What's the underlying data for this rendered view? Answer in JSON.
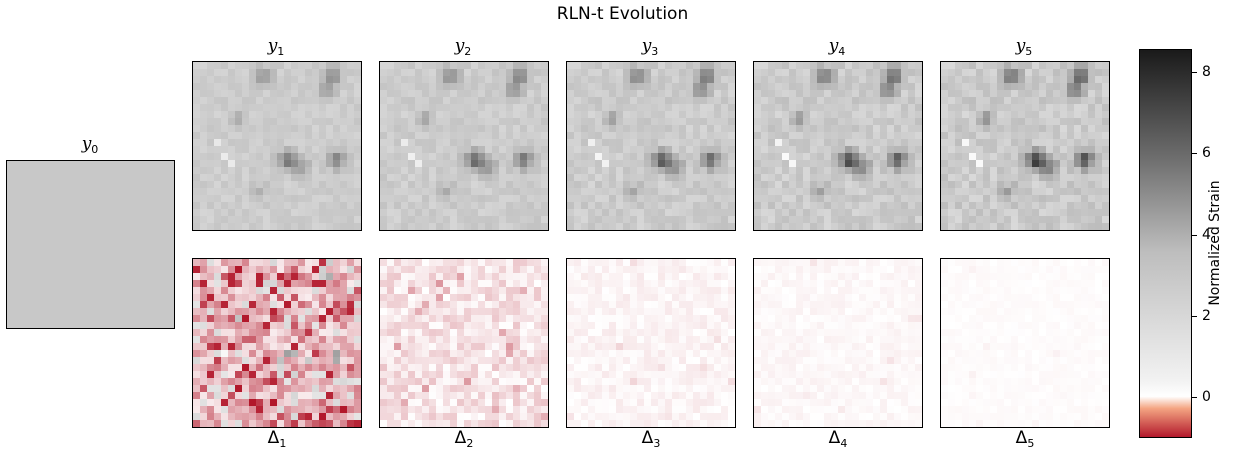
{
  "chart_data": {
    "type": "heatmap",
    "title": "RLN-t Evolution",
    "initial_panel": {
      "label": "y",
      "sub": "0"
    },
    "state_panels": [
      {
        "label": "y",
        "sub": "1"
      },
      {
        "label": "y",
        "sub": "2"
      },
      {
        "label": "y",
        "sub": "3"
      },
      {
        "label": "y",
        "sub": "4"
      },
      {
        "label": "y",
        "sub": "5"
      }
    ],
    "delta_panels": [
      {
        "label": "Δ",
        "sub": "1",
        "intensity": 1.0
      },
      {
        "label": "Δ",
        "sub": "2",
        "intensity": 0.45
      },
      {
        "label": "Δ",
        "sub": "3",
        "intensity": 0.18
      },
      {
        "label": "Δ",
        "sub": "4",
        "intensity": 0.12
      },
      {
        "label": "Δ",
        "sub": "5",
        "intensity": 0.06
      }
    ],
    "colorbar": {
      "label": "Normalized Strain",
      "ticks": [
        8,
        6,
        4,
        2,
        0
      ],
      "range": [
        -1,
        8.5
      ]
    },
    "colors": {
      "initial_fill": "#c8c8c8",
      "negative": "#b2182b",
      "zero": "#ffffff",
      "high": "#1a1a1a"
    }
  }
}
